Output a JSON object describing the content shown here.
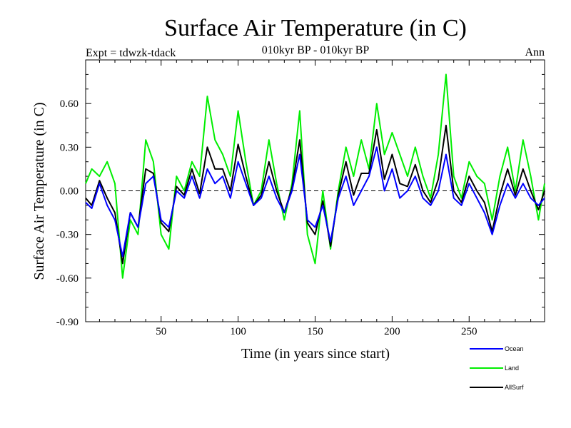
{
  "chart_data": {
    "type": "line",
    "title": "Surface Air Temperature (in C)",
    "subtitle": "010kyr BP - 010kyr BP",
    "left_label": "Expt = tdwzk-tdack",
    "right_label": "Ann",
    "xlabel": "Time (in years since start)",
    "ylabel": "Surface Air Temperature (in C)",
    "xlim": [
      1,
      299
    ],
    "ylim": [
      -0.9,
      0.9
    ],
    "xticks": [
      50,
      100,
      150,
      200,
      250
    ],
    "yticks": [
      -0.9,
      -0.6,
      -0.3,
      0.0,
      0.3,
      0.6
    ],
    "ytick_labels": [
      "-0.90",
      "-0.60",
      "-0.30",
      "0.00",
      "0.30",
      "0.60"
    ],
    "zero_line": "dashed",
    "grid": false,
    "legend_position": "bottom-right, below plot",
    "x": [
      1,
      5,
      10,
      15,
      20,
      25,
      30,
      35,
      40,
      45,
      50,
      55,
      60,
      65,
      70,
      75,
      80,
      85,
      90,
      95,
      100,
      105,
      110,
      115,
      120,
      125,
      130,
      135,
      140,
      145,
      150,
      155,
      160,
      165,
      170,
      175,
      180,
      185,
      190,
      195,
      200,
      205,
      210,
      215,
      220,
      225,
      230,
      235,
      240,
      245,
      250,
      255,
      260,
      265,
      270,
      275,
      280,
      285,
      290,
      295,
      299
    ],
    "series": [
      {
        "name": "Ocean",
        "color": "#0000ff",
        "values": [
          -0.08,
          -0.12,
          0.05,
          -0.1,
          -0.2,
          -0.45,
          -0.15,
          -0.25,
          0.05,
          0.1,
          -0.2,
          -0.25,
          0.0,
          -0.05,
          0.1,
          -0.05,
          0.15,
          0.05,
          0.1,
          -0.05,
          0.2,
          0.05,
          -0.1,
          -0.05,
          0.1,
          -0.05,
          -0.15,
          0.0,
          0.25,
          -0.2,
          -0.25,
          -0.1,
          -0.35,
          -0.05,
          0.1,
          -0.1,
          0.0,
          0.1,
          0.3,
          0.0,
          0.15,
          -0.05,
          0.0,
          0.1,
          -0.05,
          -0.1,
          0.0,
          0.25,
          -0.05,
          -0.1,
          0.05,
          -0.05,
          -0.15,
          -0.3,
          -0.1,
          0.05,
          -0.05,
          0.05,
          -0.05,
          -0.1,
          -0.05
        ]
      },
      {
        "name": "Land",
        "color": "#00ee00",
        "values": [
          0.05,
          0.15,
          0.1,
          0.2,
          0.05,
          -0.6,
          -0.2,
          -0.3,
          0.35,
          0.2,
          -0.3,
          -0.4,
          0.1,
          0.0,
          0.2,
          0.1,
          0.65,
          0.35,
          0.25,
          0.1,
          0.55,
          0.2,
          -0.1,
          0.0,
          0.35,
          0.05,
          -0.2,
          0.05,
          0.55,
          -0.3,
          -0.5,
          0.0,
          -0.4,
          0.0,
          0.3,
          0.1,
          0.35,
          0.15,
          0.6,
          0.25,
          0.4,
          0.25,
          0.1,
          0.3,
          0.1,
          -0.05,
          0.25,
          0.8,
          0.1,
          -0.05,
          0.2,
          0.1,
          0.05,
          -0.2,
          0.1,
          0.3,
          0.0,
          0.35,
          0.1,
          -0.2,
          0.05
        ]
      },
      {
        "name": "AllSurf",
        "color": "#000000",
        "values": [
          -0.05,
          -0.1,
          0.07,
          -0.05,
          -0.15,
          -0.5,
          -0.15,
          -0.25,
          0.15,
          0.12,
          -0.22,
          -0.28,
          0.03,
          -0.03,
          0.15,
          -0.02,
          0.3,
          0.15,
          0.15,
          0.0,
          0.32,
          0.1,
          -0.1,
          -0.03,
          0.2,
          0.0,
          -0.15,
          0.02,
          0.35,
          -0.22,
          -0.3,
          -0.07,
          -0.38,
          -0.03,
          0.2,
          -0.03,
          0.12,
          0.12,
          0.42,
          0.08,
          0.25,
          0.05,
          0.03,
          0.18,
          0.0,
          -0.08,
          0.08,
          0.45,
          0.0,
          -0.08,
          0.1,
          0.0,
          -0.08,
          -0.28,
          -0.03,
          0.15,
          -0.03,
          0.15,
          0.0,
          -0.13,
          0.0
        ]
      }
    ]
  }
}
